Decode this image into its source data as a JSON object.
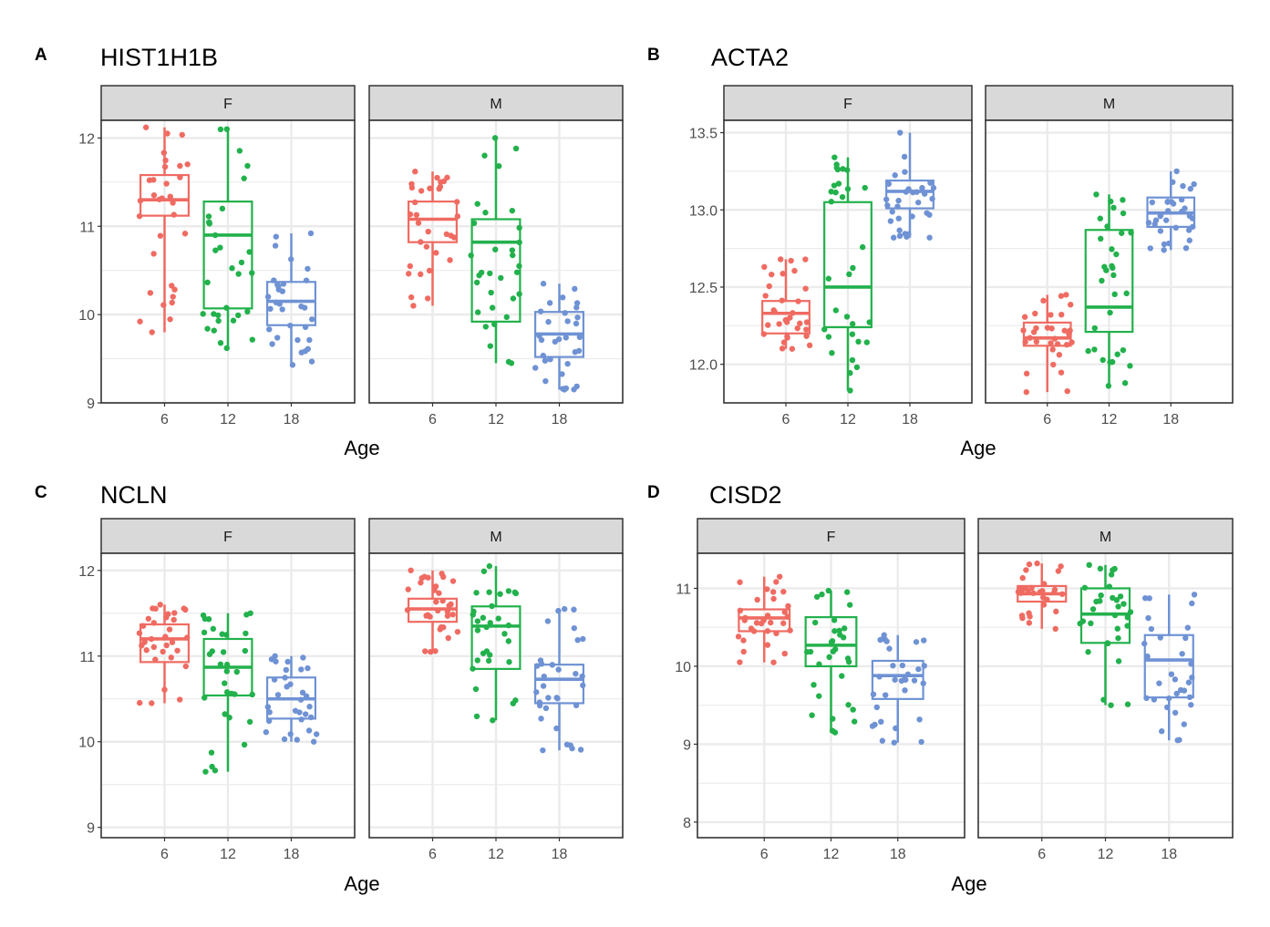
{
  "colors": {
    "age_6": "#ef6b62",
    "age_12": "#22b14c",
    "age_18": "#6f92d4",
    "strip": "#d9d9d9",
    "grid": "#ebebeb",
    "border": "#333333"
  },
  "x_label": "Age",
  "categories": [
    "6",
    "12",
    "18"
  ],
  "chart_data": [
    {
      "type": "box",
      "panel_letter": "A",
      "title": "HIST1H1B",
      "xlabel": "Age",
      "categories": [
        "6",
        "12",
        "18"
      ],
      "ylim": [
        9,
        12.2
      ],
      "yticks": [
        "9",
        "10",
        "11",
        "12"
      ],
      "facets": [
        {
          "label": "F",
          "boxes": [
            {
              "category": "6",
              "min": 9.8,
              "q1": 11.12,
              "median": 11.3,
              "q3": 11.58,
              "max": 12.12
            },
            {
              "category": "12",
              "min": 9.62,
              "q1": 10.07,
              "median": 10.9,
              "q3": 11.28,
              "max": 12.1
            },
            {
              "category": "18",
              "min": 9.43,
              "q1": 9.88,
              "median": 10.15,
              "q3": 10.37,
              "max": 10.92
            }
          ]
        },
        {
          "label": "M",
          "boxes": [
            {
              "category": "6",
              "min": 10.1,
              "q1": 10.82,
              "median": 11.08,
              "q3": 11.28,
              "max": 11.62
            },
            {
              "category": "12",
              "min": 9.45,
              "q1": 9.92,
              "median": 10.82,
              "q3": 11.08,
              "max": 12.0
            },
            {
              "category": "18",
              "min": 9.15,
              "q1": 9.52,
              "median": 9.78,
              "q3": 10.03,
              "max": 10.35
            }
          ]
        }
      ]
    },
    {
      "type": "box",
      "panel_letter": "B",
      "title": "ACTA2",
      "xlabel": "Age",
      "categories": [
        "6",
        "12",
        "18"
      ],
      "ylim": [
        11.75,
        13.58
      ],
      "yticks": [
        "12.0",
        "12.5",
        "13.0",
        "13.5"
      ],
      "facets": [
        {
          "label": "F",
          "boxes": [
            {
              "category": "6",
              "min": 12.1,
              "q1": 12.2,
              "median": 12.33,
              "q3": 12.41,
              "max": 12.68
            },
            {
              "category": "12",
              "min": 11.83,
              "q1": 12.24,
              "median": 12.5,
              "q3": 13.05,
              "max": 13.34
            },
            {
              "category": "18",
              "min": 12.82,
              "q1": 13.01,
              "median": 13.12,
              "q3": 13.19,
              "max": 13.5
            }
          ]
        },
        {
          "label": "M",
          "boxes": [
            {
              "category": "6",
              "min": 11.82,
              "q1": 12.12,
              "median": 12.17,
              "q3": 12.27,
              "max": 12.45
            },
            {
              "category": "12",
              "min": 11.86,
              "q1": 12.21,
              "median": 12.37,
              "q3": 12.87,
              "max": 13.1
            },
            {
              "category": "18",
              "min": 12.74,
              "q1": 12.89,
              "median": 12.98,
              "q3": 13.08,
              "max": 13.25
            }
          ]
        }
      ]
    },
    {
      "type": "box",
      "panel_letter": "C",
      "title": "NCLN",
      "xlabel": "Age",
      "categories": [
        "6",
        "12",
        "18"
      ],
      "ylim": [
        8.88,
        12.2
      ],
      "yticks": [
        "9",
        "10",
        "11",
        "12"
      ],
      "facets": [
        {
          "label": "F",
          "boxes": [
            {
              "category": "6",
              "min": 10.45,
              "q1": 10.93,
              "median": 11.2,
              "q3": 11.37,
              "max": 11.6
            },
            {
              "category": "12",
              "min": 9.65,
              "q1": 10.54,
              "median": 10.87,
              "q3": 11.2,
              "max": 11.5
            },
            {
              "category": "18",
              "min": 10.0,
              "q1": 10.27,
              "median": 10.5,
              "q3": 10.75,
              "max": 11.0
            }
          ]
        },
        {
          "label": "M",
          "boxes": [
            {
              "category": "6",
              "min": 11.05,
              "q1": 11.4,
              "median": 11.55,
              "q3": 11.67,
              "max": 12.0
            },
            {
              "category": "12",
              "min": 10.25,
              "q1": 10.85,
              "median": 11.35,
              "q3": 11.58,
              "max": 12.05
            },
            {
              "category": "18",
              "min": 9.9,
              "q1": 10.45,
              "median": 10.73,
              "q3": 10.9,
              "max": 11.55
            }
          ]
        }
      ]
    },
    {
      "type": "box",
      "panel_letter": "D",
      "title": "CISD2",
      "xlabel": "Age",
      "categories": [
        "6",
        "12",
        "18"
      ],
      "ylim": [
        7.8,
        11.45
      ],
      "yticks": [
        "8",
        "9",
        "10",
        "11"
      ],
      "facets": [
        {
          "label": "F",
          "boxes": [
            {
              "category": "6",
              "min": 10.05,
              "q1": 10.45,
              "median": 10.62,
              "q3": 10.73,
              "max": 11.15
            },
            {
              "category": "12",
              "min": 9.15,
              "q1": 10.0,
              "median": 10.27,
              "q3": 10.63,
              "max": 10.97
            },
            {
              "category": "18",
              "min": 9.02,
              "q1": 9.58,
              "median": 9.88,
              "q3": 10.07,
              "max": 10.4
            }
          ]
        },
        {
          "label": "M",
          "boxes": [
            {
              "category": "6",
              "min": 10.48,
              "q1": 10.83,
              "median": 10.93,
              "q3": 11.03,
              "max": 11.32
            },
            {
              "category": "12",
              "min": 9.5,
              "q1": 10.3,
              "median": 10.67,
              "q3": 11.0,
              "max": 11.3
            },
            {
              "category": "18",
              "min": 9.05,
              "q1": 9.6,
              "median": 10.08,
              "q3": 10.4,
              "max": 10.92
            }
          ]
        }
      ]
    }
  ]
}
